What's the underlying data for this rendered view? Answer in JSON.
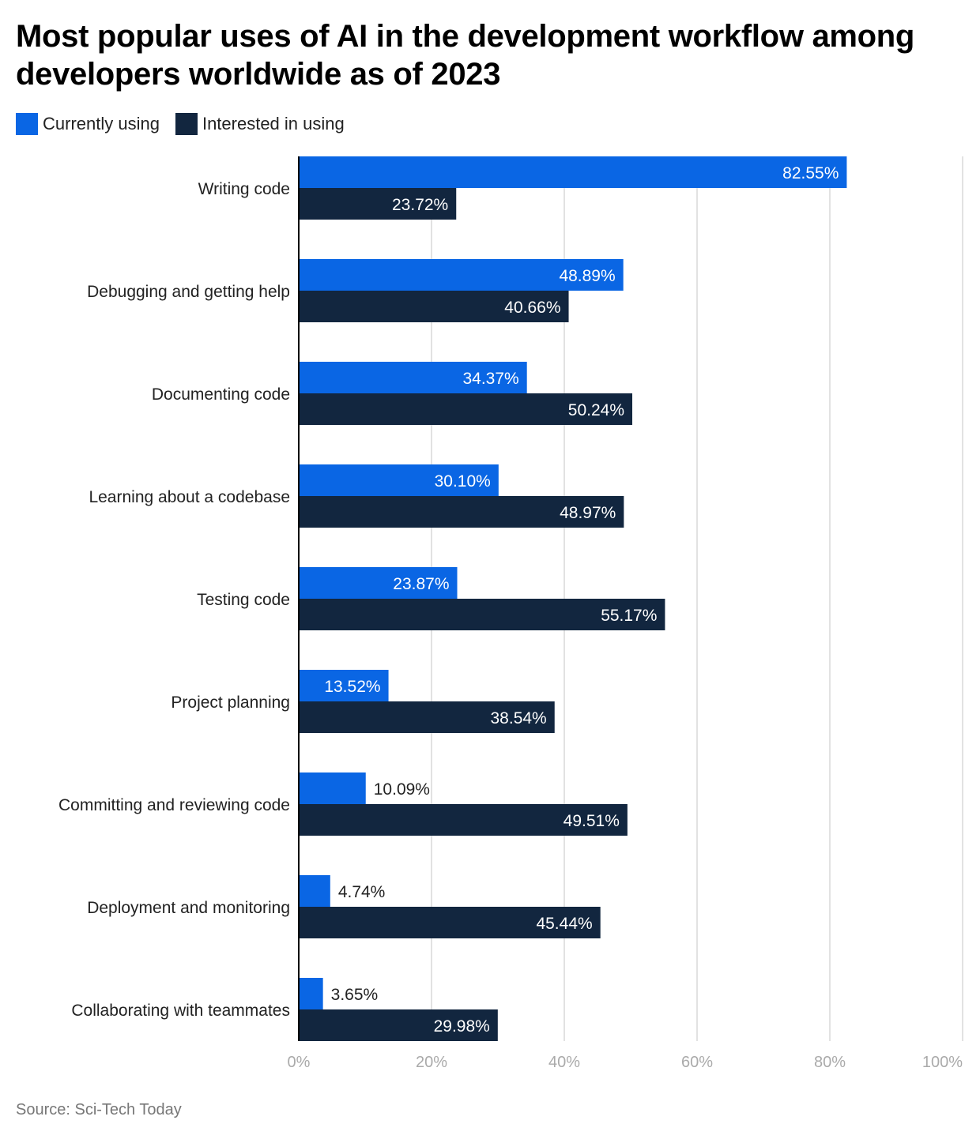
{
  "chart_data": {
    "type": "bar",
    "orientation": "horizontal",
    "title": "Most popular uses of AI in the development workflow among developers worldwide as of 2023",
    "categories": [
      "Writing code",
      "Debugging and getting help",
      "Documenting code",
      "Learning about a codebase",
      "Testing code",
      "Project planning",
      "Committing and reviewing code",
      "Deployment and monitoring",
      "Collaborating with teammates"
    ],
    "series": [
      {
        "name": "Currently using",
        "color": "#0a66e4",
        "values": [
          82.55,
          48.89,
          34.37,
          30.1,
          23.87,
          13.52,
          10.09,
          4.74,
          3.65
        ],
        "labels": [
          "82.55%",
          "48.89%",
          "34.37%",
          "30.10%",
          "23.87%",
          "13.52%",
          "10.09%",
          "4.74%",
          "3.65%"
        ]
      },
      {
        "name": "Interested in using",
        "color": "#12263f",
        "values": [
          23.72,
          40.66,
          50.24,
          48.97,
          55.17,
          38.54,
          49.51,
          45.44,
          29.98
        ],
        "labels": [
          "23.72%",
          "40.66%",
          "50.24%",
          "48.97%",
          "55.17%",
          "38.54%",
          "49.51%",
          "45.44%",
          "29.98%"
        ]
      }
    ],
    "xlim": [
      0,
      100
    ],
    "xticks": [
      "0%",
      "20%",
      "40%",
      "60%",
      "80%",
      "100%"
    ],
    "grid": true,
    "legend": "top-left",
    "source": "Source: Sci-Tech Today"
  }
}
